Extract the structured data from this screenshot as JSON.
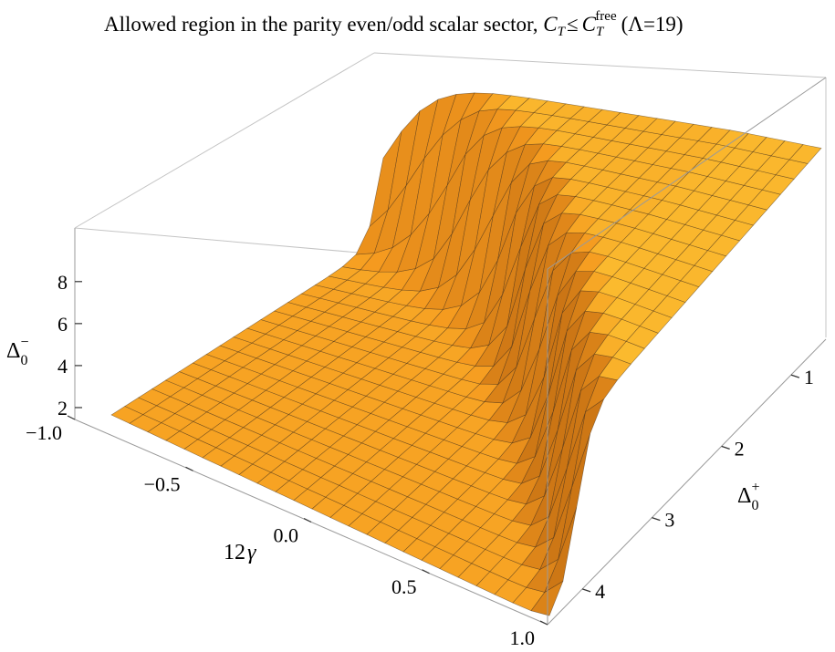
{
  "chart_data": {
    "type": "surface3d",
    "title": {
      "prefix": "Allowed region in the parity even/odd scalar sector, ",
      "ct": "C",
      "ct_sub": "T",
      "le": "≤",
      "ctf": "C",
      "ctf_sub": "T",
      "ctf_sup": "free",
      "suffix": "(Λ=19)"
    },
    "xlabel": {
      "main": "12",
      "greek": "γ"
    },
    "ylabel": {
      "main": "Δ",
      "sub": "0",
      "sup": "+"
    },
    "zlabel": {
      "main": "Δ",
      "sub": "0",
      "sup": "−"
    },
    "x_ticks": [
      "−1.0",
      "−0.5",
      "0.0",
      "0.5",
      "1.0"
    ],
    "y_ticks": [
      "1",
      "2",
      "3",
      "4"
    ],
    "z_ticks": [
      "8",
      "6",
      "4",
      "2"
    ],
    "xlim": [
      -1.0,
      1.0
    ],
    "ylim": [
      0.5,
      4.5
    ],
    "zlim": [
      0.5,
      9.5
    ],
    "z_floor": 1.0,
    "wall_height": 8.8,
    "wall_boundary": {
      "x": [
        -1.0,
        -0.6,
        -0.2,
        0.0,
        0.2,
        0.4,
        0.6,
        0.8,
        1.0
      ],
      "delta_plus_max": [
        0.5,
        0.9,
        1.4,
        1.75,
        2.2,
        2.6,
        3.1,
        3.6,
        4.1
      ]
    },
    "colors": {
      "base": "#f59a1f",
      "light": "#ffd23a",
      "dark": "#9a4a08"
    }
  }
}
